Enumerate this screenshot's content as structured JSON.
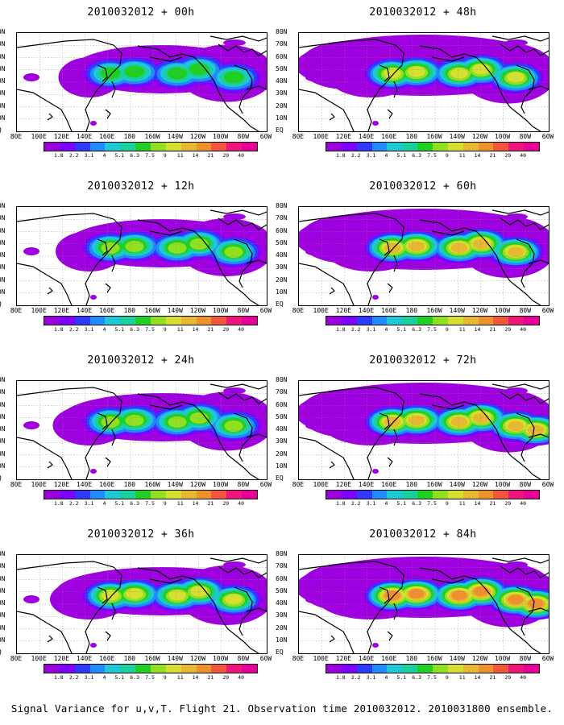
{
  "panels": [
    {
      "title": "2010032012 + 00h"
    },
    {
      "title": "2010032012 + 48h"
    },
    {
      "title": "2010032012 + 12h"
    },
    {
      "title": "2010032012 + 60h"
    },
    {
      "title": "2010032012 + 24h"
    },
    {
      "title": "2010032012 + 72h"
    },
    {
      "title": "2010032012 + 36h"
    },
    {
      "title": "2010032012 + 84h"
    }
  ],
  "lat_ticks": [
    "80N",
    "70N",
    "60N",
    "50N",
    "40N",
    "30N",
    "20N",
    "10N",
    "EQ"
  ],
  "lon_ticks": [
    "80E",
    "100E",
    "120E",
    "140E",
    "160E",
    "180",
    "160W",
    "140W",
    "120W",
    "100W",
    "80W",
    "60W"
  ],
  "colorbar": {
    "levels": [
      "1.8",
      "2.2",
      "3.1",
      "4",
      "5.1",
      "6.3",
      "7.5",
      "9",
      "11",
      "14",
      "21",
      "29",
      "40"
    ],
    "colors": [
      "#9f00e0",
      "#7f00ff",
      "#2e3bff",
      "#1e8bff",
      "#1fc8d6",
      "#18d0a0",
      "#20d020",
      "#90e020",
      "#d6e030",
      "#e8b830",
      "#f0902c",
      "#f25838",
      "#f0147e",
      "#e9009a"
    ]
  },
  "caption": "Signal Variance for u,v,T. Flight 21. Observation time 2010032012. 2010031800 ensemble."
}
